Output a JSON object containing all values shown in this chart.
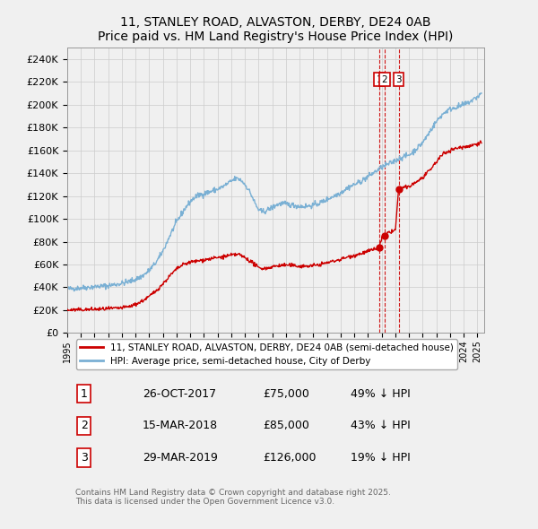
{
  "title": "11, STANLEY ROAD, ALVASTON, DERBY, DE24 0AB",
  "subtitle": "Price paid vs. HM Land Registry's House Price Index (HPI)",
  "background_color": "#f0f0f0",
  "plot_bg_color": "#f0f0f0",
  "grid_color": "#cccccc",
  "red_line_color": "#cc0000",
  "blue_line_color": "#7ab0d4",
  "ylim": [
    0,
    250000
  ],
  "yticks": [
    0,
    20000,
    40000,
    60000,
    80000,
    100000,
    120000,
    140000,
    160000,
    180000,
    200000,
    220000,
    240000
  ],
  "transactions": [
    {
      "date": "26-OCT-2017",
      "price": 75000,
      "pct": "49%",
      "label": "1",
      "date_val": 2017.82
    },
    {
      "date": "15-MAR-2018",
      "price": 85000,
      "pct": "43%",
      "label": "2",
      "date_val": 2018.21
    },
    {
      "date": "29-MAR-2019",
      "price": 126000,
      "pct": "19%",
      "label": "3",
      "date_val": 2019.24
    }
  ],
  "legend_red": "11, STANLEY ROAD, ALVASTON, DERBY, DE24 0AB (semi-detached house)",
  "legend_blue": "HPI: Average price, semi-detached house, City of Derby",
  "footer": "Contains HM Land Registry data © Crown copyright and database right 2025.\nThis data is licensed under the Open Government Licence v3.0.",
  "hpi_data": [
    [
      1995.0,
      38500
    ],
    [
      1995.5,
      39000
    ],
    [
      1996.0,
      39500
    ],
    [
      1996.5,
      40000
    ],
    [
      1997.0,
      40500
    ],
    [
      1997.5,
      41000
    ],
    [
      1998.0,
      41500
    ],
    [
      1998.5,
      42500
    ],
    [
      1999.0,
      43500
    ],
    [
      1999.5,
      45000
    ],
    [
      2000.0,
      47000
    ],
    [
      2000.5,
      50000
    ],
    [
      2001.0,
      55000
    ],
    [
      2001.5,
      62000
    ],
    [
      2002.0,
      72000
    ],
    [
      2002.5,
      85000
    ],
    [
      2003.0,
      97000
    ],
    [
      2003.5,
      107000
    ],
    [
      2004.0,
      115000
    ],
    [
      2004.5,
      120000
    ],
    [
      2005.0,
      122000
    ],
    [
      2005.5,
      124000
    ],
    [
      2006.0,
      126000
    ],
    [
      2006.5,
      129000
    ],
    [
      2007.0,
      133000
    ],
    [
      2007.5,
      135000
    ],
    [
      2008.0,
      130000
    ],
    [
      2008.5,
      120000
    ],
    [
      2009.0,
      108000
    ],
    [
      2009.5,
      107000
    ],
    [
      2010.0,
      110000
    ],
    [
      2010.5,
      113000
    ],
    [
      2011.0,
      113000
    ],
    [
      2011.5,
      112000
    ],
    [
      2012.0,
      111000
    ],
    [
      2012.5,
      111000
    ],
    [
      2013.0,
      112000
    ],
    [
      2013.5,
      114000
    ],
    [
      2014.0,
      117000
    ],
    [
      2014.5,
      120000
    ],
    [
      2015.0,
      123000
    ],
    [
      2015.5,
      127000
    ],
    [
      2016.0,
      130000
    ],
    [
      2016.5,
      133000
    ],
    [
      2017.0,
      137000
    ],
    [
      2017.5,
      141000
    ],
    [
      2018.0,
      145000
    ],
    [
      2018.5,
      148000
    ],
    [
      2019.0,
      151000
    ],
    [
      2019.5,
      154000
    ],
    [
      2020.0,
      156000
    ],
    [
      2020.5,
      161000
    ],
    [
      2021.0,
      167000
    ],
    [
      2021.5,
      176000
    ],
    [
      2022.0,
      185000
    ],
    [
      2022.5,
      192000
    ],
    [
      2023.0,
      196000
    ],
    [
      2023.5,
      198000
    ],
    [
      2024.0,
      200000
    ],
    [
      2024.5,
      203000
    ],
    [
      2025.0,
      207000
    ],
    [
      2025.3,
      210000
    ]
  ],
  "red_data": [
    [
      1995.0,
      20000
    ],
    [
      1995.5,
      20200
    ],
    [
      1996.0,
      20300
    ],
    [
      1996.5,
      20500
    ],
    [
      1997.0,
      20700
    ],
    [
      1997.5,
      20900
    ],
    [
      1998.0,
      21200
    ],
    [
      1998.5,
      21500
    ],
    [
      1999.0,
      22000
    ],
    [
      1999.5,
      23000
    ],
    [
      2000.0,
      25000
    ],
    [
      2000.5,
      28000
    ],
    [
      2001.0,
      32000
    ],
    [
      2001.5,
      37000
    ],
    [
      2002.0,
      43000
    ],
    [
      2002.5,
      50000
    ],
    [
      2003.0,
      56000
    ],
    [
      2003.5,
      60000
    ],
    [
      2004.0,
      62000
    ],
    [
      2004.5,
      63000
    ],
    [
      2005.0,
      64000
    ],
    [
      2005.5,
      65000
    ],
    [
      2006.0,
      66000
    ],
    [
      2006.5,
      67000
    ],
    [
      2007.0,
      68000
    ],
    [
      2007.5,
      69000
    ],
    [
      2008.0,
      66000
    ],
    [
      2008.5,
      62000
    ],
    [
      2009.0,
      57000
    ],
    [
      2009.5,
      56500
    ],
    [
      2010.0,
      58000
    ],
    [
      2010.5,
      59000
    ],
    [
      2011.0,
      59500
    ],
    [
      2011.5,
      59000
    ],
    [
      2012.0,
      58500
    ],
    [
      2012.5,
      58500
    ],
    [
      2013.0,
      59000
    ],
    [
      2013.5,
      60000
    ],
    [
      2014.0,
      61500
    ],
    [
      2014.5,
      63000
    ],
    [
      2015.0,
      64500
    ],
    [
      2015.5,
      66500
    ],
    [
      2016.0,
      68000
    ],
    [
      2016.5,
      69500
    ],
    [
      2017.0,
      71500
    ],
    [
      2017.5,
      73500
    ],
    [
      2017.82,
      75000
    ],
    [
      2018.0,
      83000
    ],
    [
      2018.21,
      85000
    ],
    [
      2018.5,
      88000
    ],
    [
      2019.0,
      90000
    ],
    [
      2019.24,
      126000
    ],
    [
      2019.5,
      127000
    ],
    [
      2020.0,
      128000
    ],
    [
      2020.5,
      132000
    ],
    [
      2021.0,
      136000
    ],
    [
      2021.5,
      142000
    ],
    [
      2022.0,
      150000
    ],
    [
      2022.5,
      157000
    ],
    [
      2023.0,
      160000
    ],
    [
      2023.5,
      162000
    ],
    [
      2024.0,
      163000
    ],
    [
      2024.5,
      164000
    ],
    [
      2025.0,
      166000
    ],
    [
      2025.3,
      167000
    ]
  ]
}
